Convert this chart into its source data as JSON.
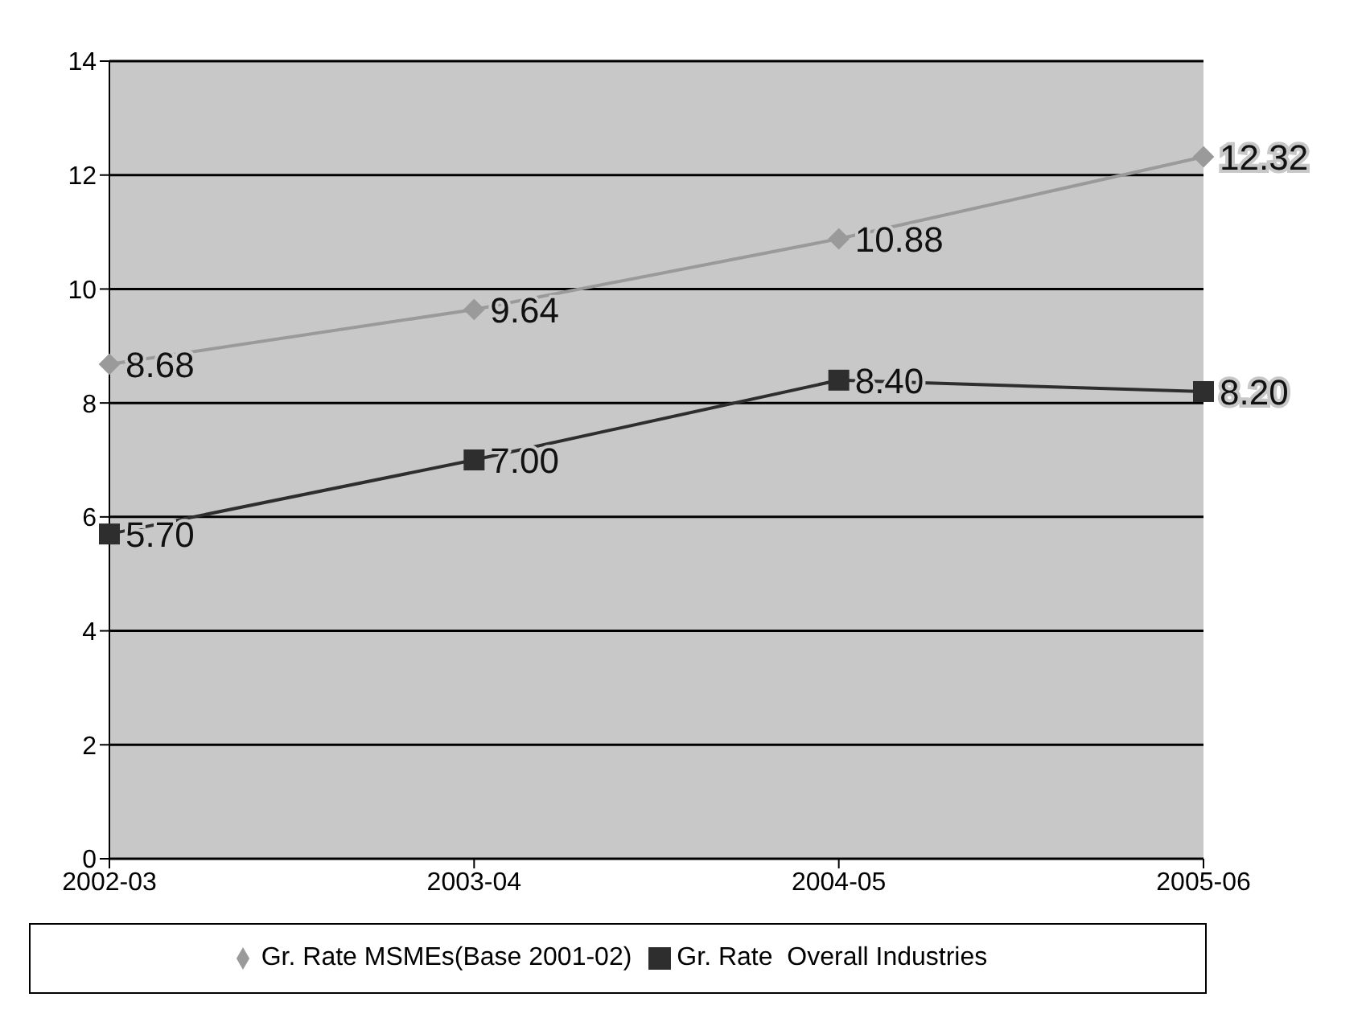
{
  "chart_data": {
    "type": "line",
    "categories": [
      "2002-03",
      "2003-04",
      "2004-05",
      "2005-06"
    ],
    "series": [
      {
        "name": "Gr. Rate MSMEs(Base 2001-02)",
        "color": "#9a9a9a",
        "marker": "diamond",
        "values": [
          8.68,
          9.64,
          10.88,
          12.32
        ],
        "value_labels": [
          "8.68",
          "9.64",
          "10.88",
          "12.32"
        ]
      },
      {
        "name": "Gr. Rate  Overall Industries",
        "color": "#2e2e2e",
        "marker": "square",
        "values": [
          5.7,
          7.0,
          8.4,
          8.2
        ],
        "value_labels": [
          "5.70",
          "7.00",
          "8.40",
          "8.20"
        ]
      }
    ],
    "ylim": [
      0,
      14
    ],
    "yticks": [
      0,
      2,
      4,
      6,
      8,
      10,
      12,
      14
    ],
    "grid": "y",
    "legend": "bottom"
  }
}
